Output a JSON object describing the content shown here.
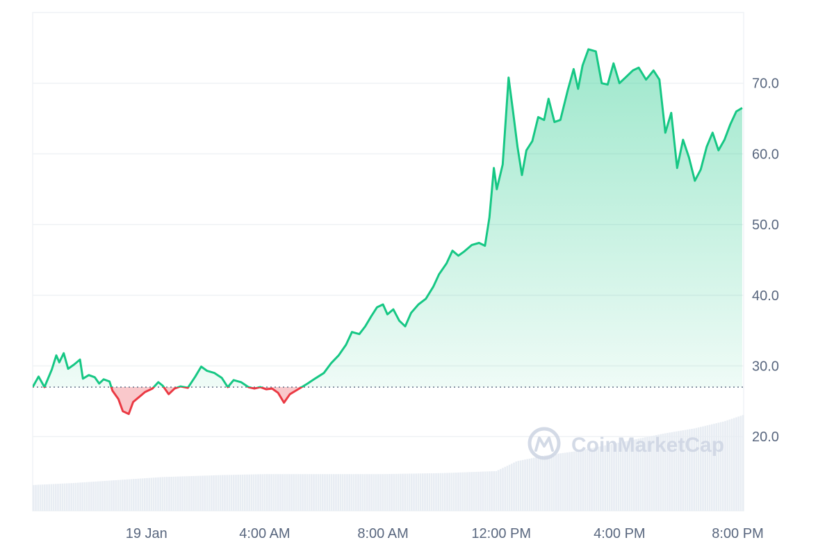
{
  "chart_data": {
    "type": "area",
    "baseline": 27.0,
    "ylim": [
      9.5,
      80
    ],
    "yticks": [
      20.0,
      30.0,
      40.0,
      50.0,
      60.0,
      70.0
    ],
    "xtick_labels": [
      "19 Jan",
      "4:00 AM",
      "8:00 AM",
      "12:00 PM",
      "4:00 PM",
      "8:00 PM"
    ],
    "xtick_hours": [
      0,
      4,
      8,
      12,
      16,
      20
    ],
    "xlim_hours": [
      -3.85,
      20.2
    ],
    "grid": true,
    "colors": {
      "up": "#16c784",
      "down": "#ea3943",
      "grid": "#eff2f5",
      "volume": "#e8edf3",
      "baseline": "#616e85"
    },
    "watermark": "CoinMarketCap",
    "series": [
      {
        "values": [
          [
            -3.85,
            27.0
          ],
          [
            -3.65,
            28.5
          ],
          [
            -3.45,
            27.0
          ],
          [
            -3.2,
            29.5
          ],
          [
            -3.05,
            31.5
          ],
          [
            -2.95,
            30.5
          ],
          [
            -2.8,
            31.8
          ],
          [
            -2.65,
            29.6
          ],
          [
            -2.45,
            30.2
          ],
          [
            -2.25,
            30.9
          ],
          [
            -2.15,
            28.2
          ],
          [
            -1.95,
            28.7
          ],
          [
            -1.75,
            28.4
          ],
          [
            -1.6,
            27.5
          ],
          [
            -1.45,
            28.1
          ],
          [
            -1.25,
            27.8
          ],
          [
            -1.15,
            26.5
          ],
          [
            -0.95,
            25.3
          ],
          [
            -0.8,
            23.6
          ],
          [
            -0.6,
            23.2
          ],
          [
            -0.45,
            24.9
          ],
          [
            -0.25,
            25.6
          ],
          [
            -0.05,
            26.3
          ],
          [
            0.2,
            26.8
          ],
          [
            0.4,
            27.7
          ],
          [
            0.55,
            27.2
          ],
          [
            0.75,
            26.0
          ],
          [
            0.95,
            26.8
          ],
          [
            1.15,
            27.1
          ],
          [
            1.4,
            26.9
          ],
          [
            1.65,
            28.5
          ],
          [
            1.85,
            29.9
          ],
          [
            2.05,
            29.3
          ],
          [
            2.3,
            29.0
          ],
          [
            2.55,
            28.3
          ],
          [
            2.75,
            27.0
          ],
          [
            2.95,
            28.0
          ],
          [
            3.2,
            27.7
          ],
          [
            3.45,
            27.0
          ],
          [
            3.65,
            26.8
          ],
          [
            3.85,
            27.0
          ],
          [
            4.05,
            26.7
          ],
          [
            4.25,
            26.8
          ],
          [
            4.45,
            26.2
          ],
          [
            4.65,
            24.8
          ],
          [
            4.85,
            26.0
          ],
          [
            5.05,
            26.5
          ],
          [
            5.25,
            27.0
          ],
          [
            5.45,
            27.5
          ],
          [
            5.7,
            28.2
          ],
          [
            6.0,
            29.0
          ],
          [
            6.25,
            30.4
          ],
          [
            6.5,
            31.5
          ],
          [
            6.75,
            33.0
          ],
          [
            6.95,
            34.8
          ],
          [
            7.2,
            34.5
          ],
          [
            7.4,
            35.6
          ],
          [
            7.6,
            37.0
          ],
          [
            7.8,
            38.3
          ],
          [
            8.0,
            38.7
          ],
          [
            8.15,
            37.3
          ],
          [
            8.35,
            38.0
          ],
          [
            8.55,
            36.4
          ],
          [
            8.75,
            35.6
          ],
          [
            8.95,
            37.5
          ],
          [
            9.2,
            38.7
          ],
          [
            9.45,
            39.5
          ],
          [
            9.7,
            41.2
          ],
          [
            9.9,
            43.0
          ],
          [
            10.15,
            44.5
          ],
          [
            10.35,
            46.3
          ],
          [
            10.55,
            45.6
          ],
          [
            10.75,
            46.2
          ],
          [
            11.0,
            47.1
          ],
          [
            11.25,
            47.4
          ],
          [
            11.45,
            47.0
          ],
          [
            11.6,
            51.0
          ],
          [
            11.75,
            58.0
          ],
          [
            11.85,
            55.0
          ],
          [
            12.05,
            58.5
          ],
          [
            12.25,
            70.8
          ],
          [
            12.4,
            66.0
          ],
          [
            12.55,
            61.0
          ],
          [
            12.7,
            57.0
          ],
          [
            12.85,
            60.5
          ],
          [
            13.05,
            61.8
          ],
          [
            13.25,
            65.2
          ],
          [
            13.45,
            64.8
          ],
          [
            13.6,
            67.8
          ],
          [
            13.8,
            64.5
          ],
          [
            14.0,
            64.8
          ],
          [
            14.25,
            69.0
          ],
          [
            14.45,
            72.0
          ],
          [
            14.6,
            69.2
          ],
          [
            14.75,
            72.5
          ],
          [
            14.95,
            74.8
          ],
          [
            15.2,
            74.5
          ],
          [
            15.4,
            70.0
          ],
          [
            15.6,
            69.8
          ],
          [
            15.8,
            72.8
          ],
          [
            16.0,
            70.0
          ],
          [
            16.2,
            70.8
          ],
          [
            16.45,
            71.8
          ],
          [
            16.65,
            72.2
          ],
          [
            16.9,
            70.5
          ],
          [
            17.15,
            71.8
          ],
          [
            17.35,
            70.5
          ],
          [
            17.55,
            63.0
          ],
          [
            17.75,
            65.8
          ],
          [
            17.95,
            58.0
          ],
          [
            18.15,
            62.0
          ],
          [
            18.35,
            59.5
          ],
          [
            18.55,
            56.2
          ],
          [
            18.75,
            57.8
          ],
          [
            18.95,
            61.0
          ],
          [
            19.15,
            63.0
          ],
          [
            19.35,
            60.5
          ],
          [
            19.55,
            62.0
          ],
          [
            19.75,
            64.2
          ],
          [
            19.95,
            66.0
          ],
          [
            20.15,
            66.5
          ]
        ]
      }
    ],
    "volume": [
      [
        -3.85,
        2.6
      ],
      [
        -2.5,
        2.8
      ],
      [
        -1.0,
        3.1
      ],
      [
        0.5,
        3.4
      ],
      [
        2.5,
        3.6
      ],
      [
        4.0,
        3.7
      ],
      [
        6.0,
        3.7
      ],
      [
        8.0,
        3.7
      ],
      [
        10.0,
        3.8
      ],
      [
        11.8,
        4.0
      ],
      [
        12.5,
        5.0
      ],
      [
        13.5,
        5.6
      ],
      [
        14.5,
        6.0
      ],
      [
        15.5,
        6.6
      ],
      [
        16.5,
        7.2
      ],
      [
        17.5,
        7.8
      ],
      [
        18.5,
        8.3
      ],
      [
        19.5,
        9.0
      ],
      [
        20.2,
        9.7
      ]
    ]
  }
}
